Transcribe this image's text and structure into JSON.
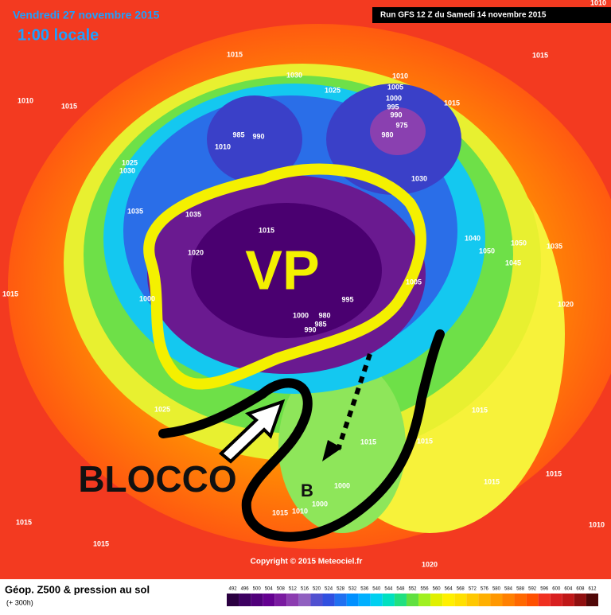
{
  "header": {
    "date": "Vendredi 27 novembre 2015",
    "time": "1:00 locale",
    "run": "Run GFS 12 Z du Samedi 14 novembre 2015"
  },
  "annotations": {
    "vortex": "VP",
    "block": "BLOCCO",
    "low": "B"
  },
  "pressure_labels": [
    1010,
    1015,
    1015,
    1030,
    1010,
    1005,
    1025,
    1000,
    995,
    990,
    975,
    980,
    1015,
    1015,
    985,
    990,
    1010,
    1025,
    1030,
    1035,
    1035,
    1015,
    1020,
    1000,
    995,
    1000,
    980,
    985,
    990,
    1005,
    1030,
    1040,
    1050,
    1050,
    1045,
    1035,
    1020,
    1015,
    1025,
    1015,
    1015,
    1015,
    1015,
    1015,
    1000,
    1000,
    1010,
    1015,
    1015,
    1015,
    1020,
    1010,
    1010
  ],
  "footer": {
    "copyright": "Copyright © 2015 Meteociel.fr",
    "title": "Géop. Z500 & pression au sol",
    "lead": "(+ 300h)"
  },
  "legend": {
    "values": [
      492,
      496,
      500,
      504,
      508,
      512,
      516,
      520,
      524,
      528,
      532,
      536,
      540,
      544,
      548,
      552,
      556,
      560,
      564,
      568,
      572,
      576,
      580,
      584,
      588,
      592,
      596,
      600,
      604,
      608,
      612
    ],
    "colors": [
      "#2a0040",
      "#3c0060",
      "#50007a",
      "#640090",
      "#7a1aa0",
      "#8c3cb0",
      "#9060c0",
      "#5050d0",
      "#3050e0",
      "#2070f0",
      "#0090ff",
      "#00b0ff",
      "#00d0f0",
      "#00e0c0",
      "#20e080",
      "#60e040",
      "#a0f020",
      "#e0f000",
      "#fff000",
      "#ffe000",
      "#ffc800",
      "#ffb000",
      "#ff9800",
      "#ff8000",
      "#ff6800",
      "#ff5000",
      "#f03020",
      "#d82020",
      "#c01818",
      "#901010",
      "#500808"
    ]
  }
}
